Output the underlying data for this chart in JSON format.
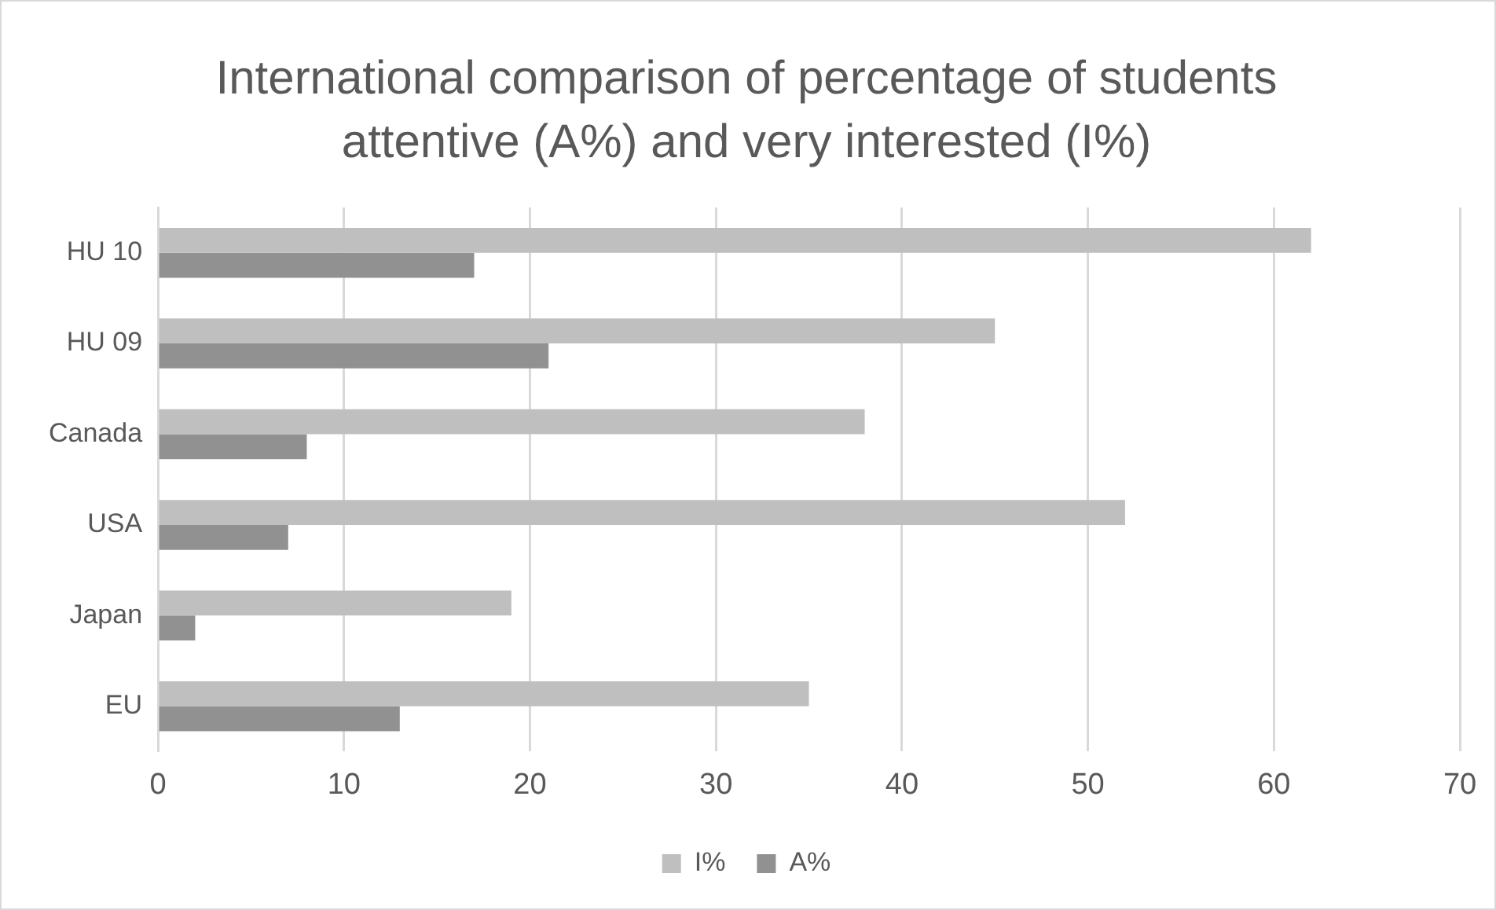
{
  "chart_data": {
    "type": "bar",
    "orientation": "horizontal",
    "title": "International comparison of percentage of students attentive (A%) and very interested (I%)",
    "categories": [
      "HU 10",
      "HU 09",
      "Canada",
      "USA",
      "Japan",
      "EU"
    ],
    "series": [
      {
        "name": "I%",
        "color": "#bfbfbf",
        "values": [
          62,
          45,
          38,
          52,
          19,
          35
        ]
      },
      {
        "name": "A%",
        "color": "#919191",
        "values": [
          17,
          21,
          8,
          7,
          2,
          13
        ]
      }
    ],
    "xlim": [
      0,
      70
    ],
    "xticks": [
      0,
      10,
      20,
      30,
      40,
      50,
      60,
      70
    ],
    "grid": "x",
    "legend": "bottom"
  }
}
